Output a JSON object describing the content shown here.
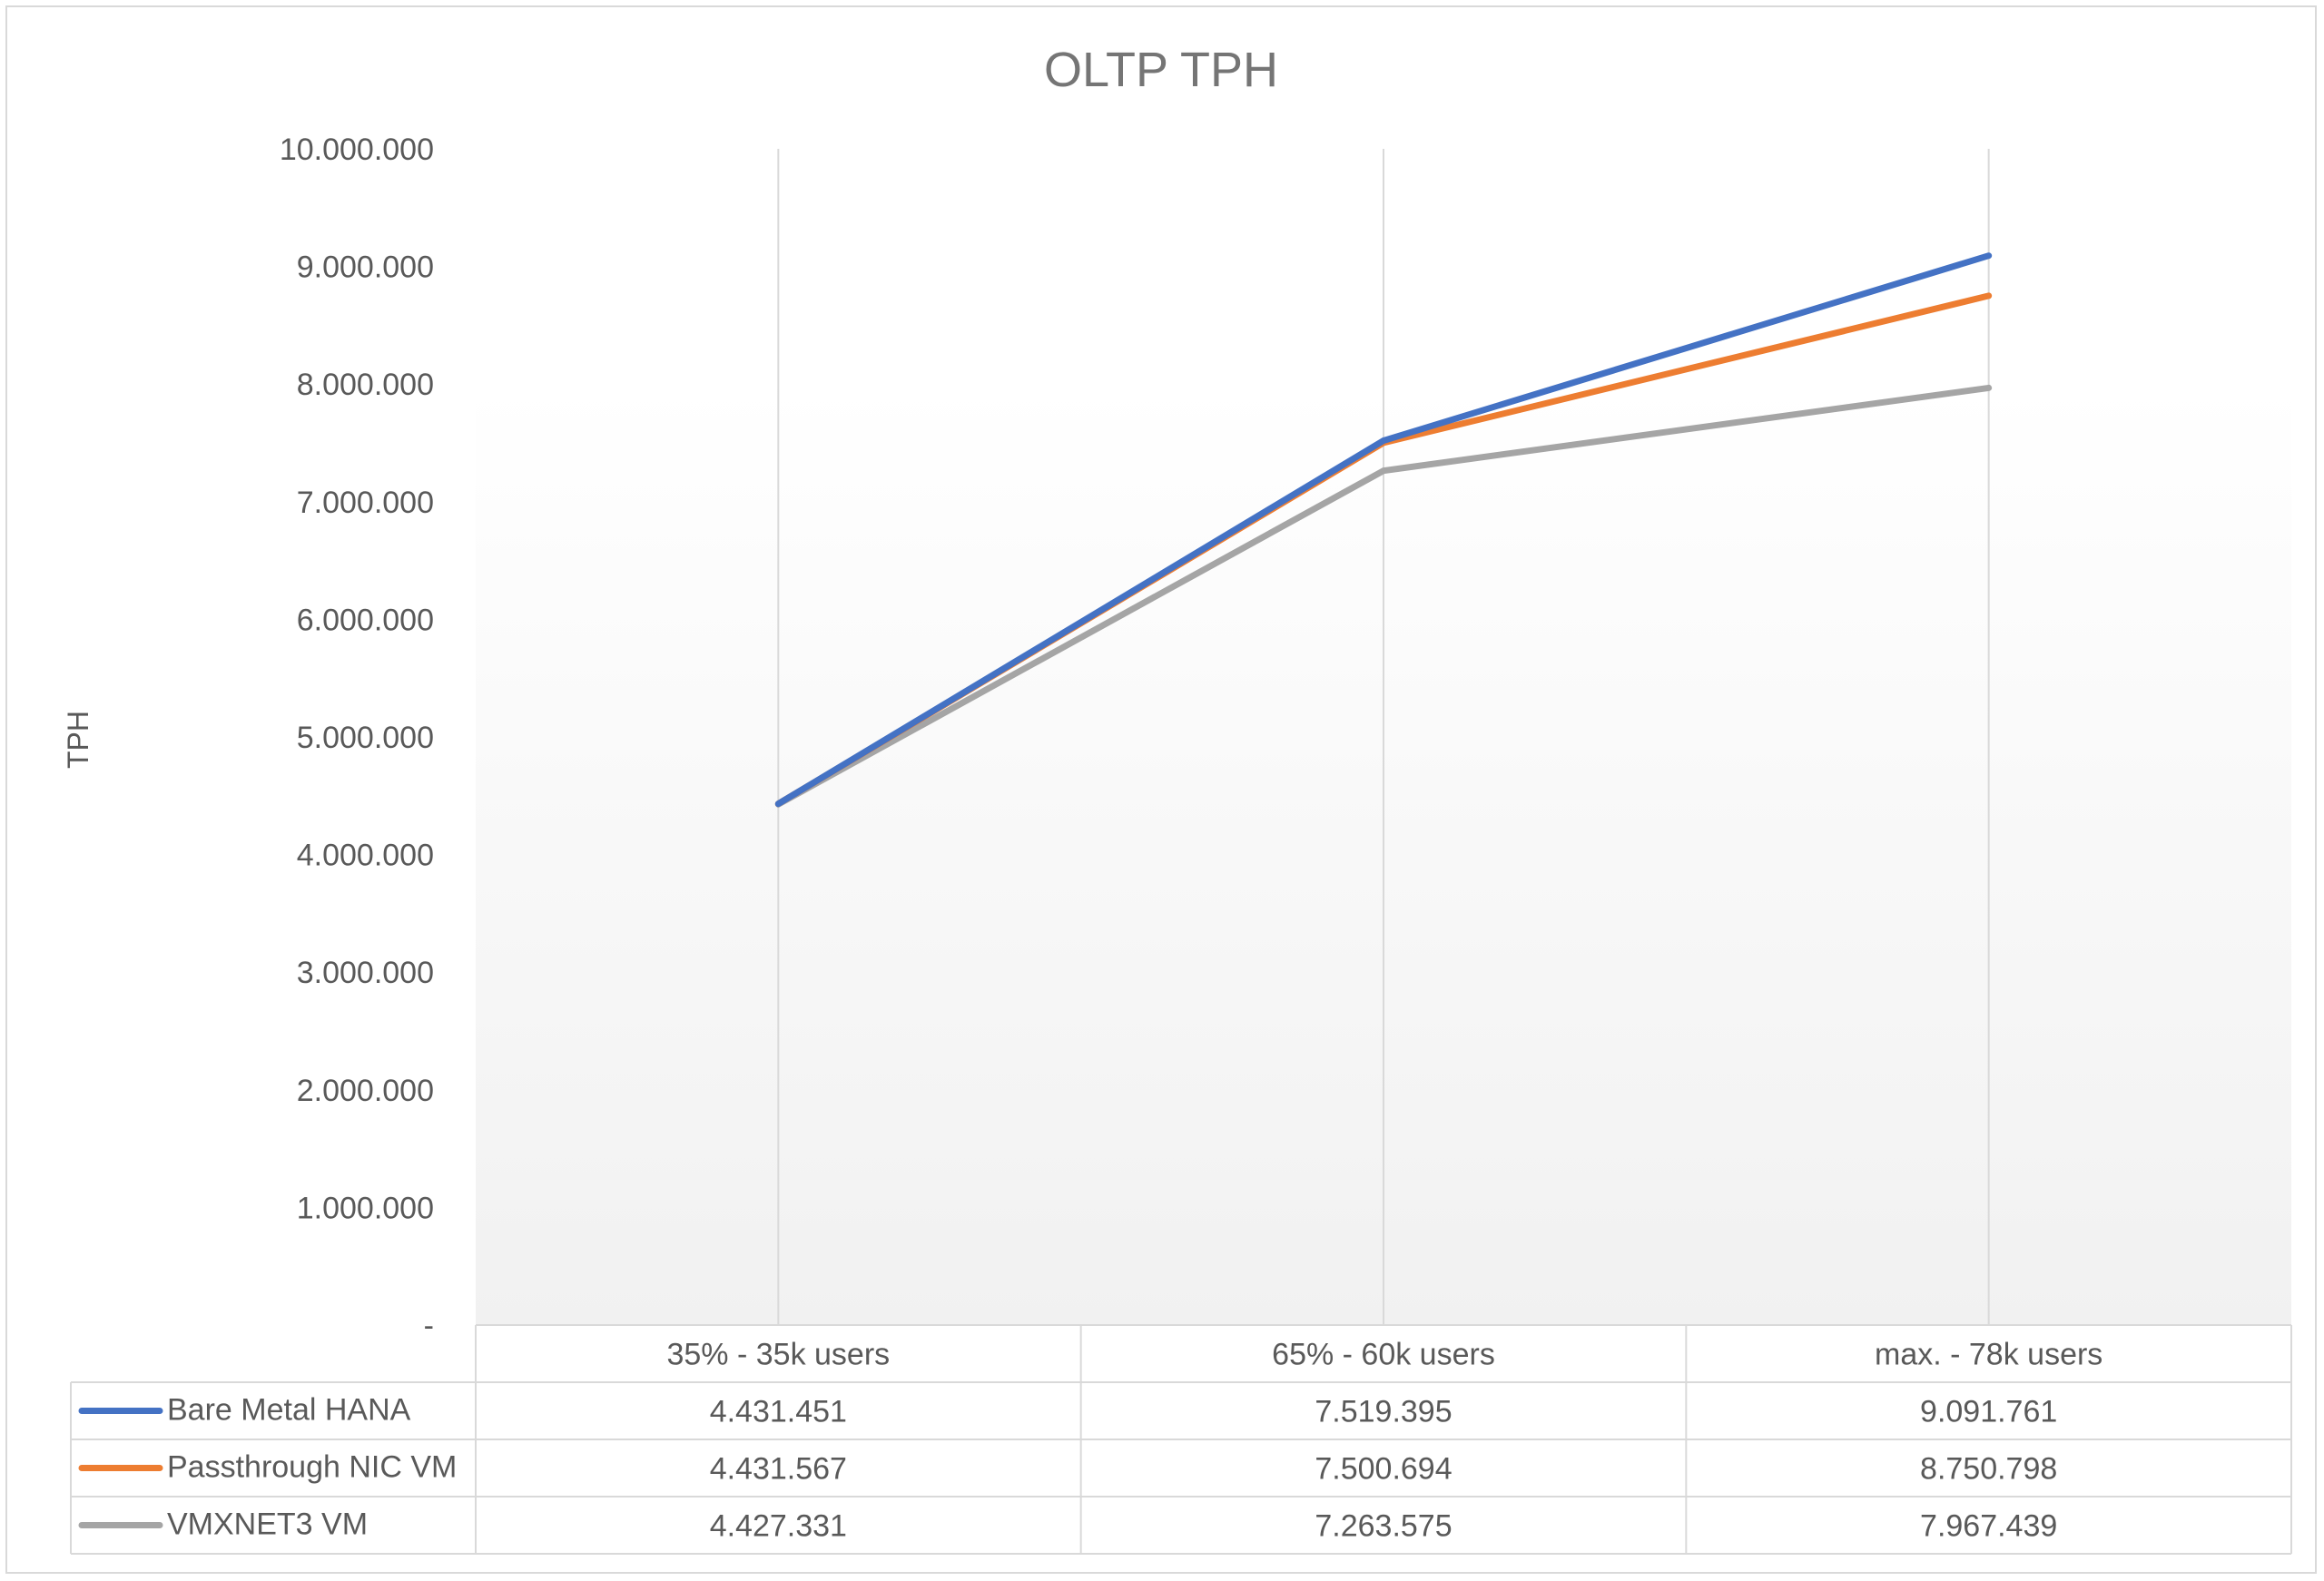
{
  "chart_data": {
    "type": "line",
    "title": "OLTP TPH",
    "ylabel": "TPH",
    "xlabel": "",
    "ylim": [
      0,
      10000000
    ],
    "yticks": [
      {
        "value": 0,
        "label": "-"
      },
      {
        "value": 1000000,
        "label": "1.000.000"
      },
      {
        "value": 2000000,
        "label": "2.000.000"
      },
      {
        "value": 3000000,
        "label": "3.000.000"
      },
      {
        "value": 4000000,
        "label": "4.000.000"
      },
      {
        "value": 5000000,
        "label": "5.000.000"
      },
      {
        "value": 6000000,
        "label": "6.000.000"
      },
      {
        "value": 7000000,
        "label": "7.000.000"
      },
      {
        "value": 8000000,
        "label": "8.000.000"
      },
      {
        "value": 9000000,
        "label": "9.000.000"
      },
      {
        "value": 10000000,
        "label": "10.000.000"
      }
    ],
    "grid": "vertical",
    "legend": "data-table",
    "categories": [
      "35% - 35k users",
      "65% - 60k users",
      "max. - 78k users"
    ],
    "series": [
      {
        "name": "Bare Metal HANA",
        "color": "#4472c4",
        "values": [
          4431451,
          7519395,
          9091761
        ],
        "labels": [
          "4.431.451",
          "7.519.395",
          "9.091.761"
        ]
      },
      {
        "name": "Passthrough NIC VM",
        "color": "#ed7d31",
        "values": [
          4431567,
          7500694,
          8750798
        ],
        "labels": [
          "4.431.567",
          "7.500.694",
          "8.750.798"
        ]
      },
      {
        "name": "VMXNET3 VM",
        "color": "#a5a5a5",
        "values": [
          4427331,
          7263575,
          7967439
        ],
        "labels": [
          "4.427.331",
          "7.263.575",
          "7.967.439"
        ]
      }
    ]
  }
}
